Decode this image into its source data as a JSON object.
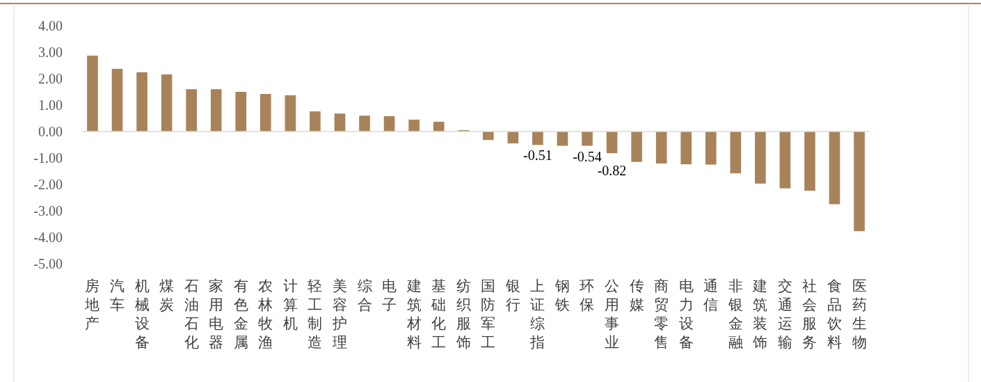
{
  "chart_data": {
    "type": "bar",
    "categories": [
      "房地产",
      "汽车",
      "机械设备",
      "煤炭",
      "石油石化",
      "家用电器",
      "有色金属",
      "农林牧渔",
      "计算机",
      "轻工制造",
      "美容护理",
      "综合",
      "电子",
      "建筑材料",
      "基础化工",
      "纺织服饰",
      "国防军工",
      "银行",
      "上证综指",
      "钢铁",
      "环保",
      "公用事业",
      "传媒",
      "商贸零售",
      "电力设备",
      "通信",
      "非银金融",
      "建筑装饰",
      "交通运输",
      "社会服务",
      "食品饮料",
      "医药生物"
    ],
    "values": [
      2.87,
      2.37,
      2.24,
      2.16,
      1.6,
      1.6,
      1.5,
      1.42,
      1.37,
      0.76,
      0.68,
      0.6,
      0.58,
      0.45,
      0.37,
      0.05,
      -0.32,
      -0.45,
      -0.51,
      -0.54,
      -0.54,
      -0.82,
      -1.15,
      -1.21,
      -1.24,
      -1.25,
      -1.58,
      -1.97,
      -2.15,
      -2.24,
      -2.75,
      -3.77
    ],
    "value_labels": [
      null,
      null,
      null,
      null,
      null,
      null,
      null,
      null,
      null,
      null,
      null,
      null,
      null,
      null,
      null,
      null,
      null,
      null,
      "-0.51",
      null,
      "-0.54",
      "-0.82",
      null,
      null,
      null,
      null,
      null,
      null,
      null,
      null,
      null,
      null
    ],
    "color": "#a8835a",
    "ylim": [
      -5,
      4
    ],
    "yticks": [
      {
        "value": 4,
        "label": "4.00"
      },
      {
        "value": 3,
        "label": "3.00"
      },
      {
        "value": 2,
        "label": "2.00"
      },
      {
        "value": 1,
        "label": "1.00"
      },
      {
        "value": 0,
        "label": "0.00"
      },
      {
        "value": -1,
        "label": "-1.00"
      },
      {
        "value": -2,
        "label": "-2.00"
      },
      {
        "value": -3,
        "label": "-3.00"
      },
      {
        "value": -4,
        "label": "-4.00"
      },
      {
        "value": -5,
        "label": "-5.00"
      }
    ],
    "legend": false
  }
}
